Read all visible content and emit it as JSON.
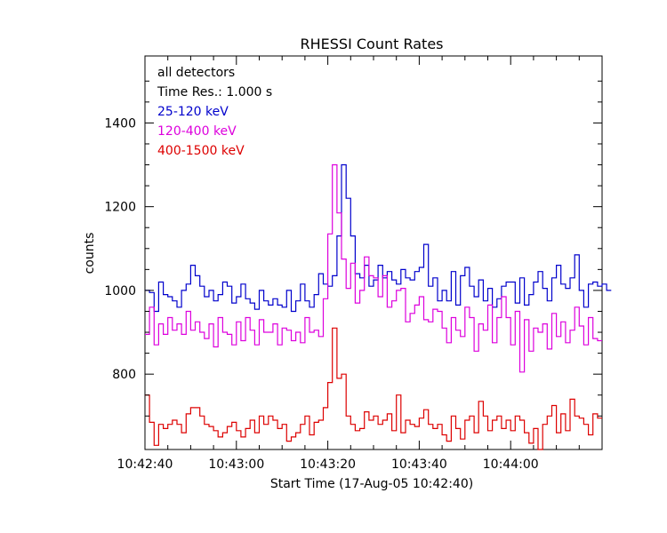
{
  "chart_data": {
    "type": "line",
    "step": true,
    "title": "RHESSI Count Rates",
    "xlabel": "Start Time (17-Aug-05 10:42:40)",
    "ylabel": "counts",
    "xlim": [
      0,
      100
    ],
    "ylim": [
      620,
      1560
    ],
    "x_ticks": [
      {
        "value": 0,
        "label": "10:42:40"
      },
      {
        "value": 20,
        "label": "10:43:00"
      },
      {
        "value": 40,
        "label": "10:43:20"
      },
      {
        "value": 60,
        "label": "10:43:40"
      },
      {
        "value": 80,
        "label": "10:44:00"
      }
    ],
    "y_ticks": [
      {
        "value": 800,
        "label": "800"
      },
      {
        "value": 1000,
        "label": "1000"
      },
      {
        "value": 1200,
        "label": "1200"
      },
      {
        "value": 1400,
        "label": "1400"
      }
    ],
    "annotations": [
      "all detectors",
      "Time Res.: 1.000 s"
    ],
    "series": [
      {
        "name": "25-120 keV",
        "color": "#0000cc",
        "x0": 0,
        "dx": 1,
        "values": [
          1000,
          995,
          950,
          1020,
          990,
          985,
          975,
          960,
          1000,
          1015,
          1060,
          1035,
          1010,
          985,
          1000,
          975,
          990,
          1020,
          1010,
          970,
          985,
          1015,
          980,
          970,
          955,
          1000,
          975,
          965,
          980,
          965,
          960,
          1000,
          950,
          975,
          1015,
          975,
          960,
          990,
          1040,
          1015,
          1010,
          1035,
          1130,
          1300,
          1220,
          1130,
          1040,
          1030,
          1060,
          1010,
          1025,
          1060,
          1030,
          1045,
          1025,
          1015,
          1050,
          1030,
          1025,
          1045,
          1055,
          1110,
          1010,
          1030,
          975,
          1000,
          975,
          1045,
          965,
          1035,
          1055,
          1010,
          985,
          1025,
          975,
          1005,
          960,
          980,
          1010,
          1020,
          1020,
          970,
          1030,
          965,
          990,
          1020,
          1045,
          1005,
          975,
          1030,
          1060,
          1015,
          1005,
          1030,
          1085,
          1000,
          960,
          1015,
          1020,
          1010,
          1015,
          1000
        ]
      },
      {
        "name": "120-400 keV",
        "color": "#dd00dd",
        "x0": 0,
        "dx": 1,
        "values": [
          895,
          960,
          870,
          920,
          895,
          935,
          905,
          920,
          895,
          950,
          905,
          925,
          900,
          885,
          920,
          865,
          935,
          900,
          895,
          870,
          925,
          880,
          935,
          905,
          870,
          930,
          900,
          900,
          920,
          870,
          910,
          905,
          880,
          900,
          875,
          935,
          900,
          905,
          890,
          980,
          1135,
          1300,
          1185,
          1075,
          1005,
          1065,
          970,
          1000,
          1080,
          1035,
          1030,
          985,
          1035,
          960,
          975,
          1000,
          1005,
          925,
          945,
          965,
          985,
          930,
          925,
          955,
          950,
          910,
          875,
          935,
          905,
          890,
          960,
          935,
          855,
          920,
          905,
          965,
          875,
          935,
          985,
          935,
          870,
          950,
          805,
          930,
          855,
          910,
          900,
          920,
          860,
          945,
          890,
          925,
          875,
          905,
          960,
          915,
          870,
          935,
          885,
          880
        ]
      },
      {
        "name": "400-1500 keV",
        "color": "#dd0000",
        "x0": 0,
        "dx": 1,
        "values": [
          750,
          685,
          630,
          680,
          670,
          680,
          690,
          680,
          660,
          705,
          720,
          720,
          700,
          680,
          675,
          665,
          650,
          660,
          675,
          685,
          665,
          650,
          670,
          690,
          660,
          700,
          680,
          700,
          690,
          670,
          680,
          640,
          650,
          660,
          680,
          700,
          655,
          685,
          690,
          720,
          780,
          910,
          790,
          800,
          700,
          680,
          665,
          670,
          710,
          690,
          700,
          680,
          690,
          705,
          665,
          750,
          660,
          690,
          680,
          675,
          695,
          715,
          680,
          670,
          680,
          655,
          640,
          700,
          670,
          645,
          690,
          700,
          660,
          735,
          700,
          665,
          690,
          700,
          670,
          690,
          665,
          700,
          690,
          660,
          635,
          670,
          620,
          680,
          700,
          725,
          660,
          705,
          665,
          740,
          700,
          695,
          680,
          655,
          705,
          695
        ]
      }
    ]
  }
}
